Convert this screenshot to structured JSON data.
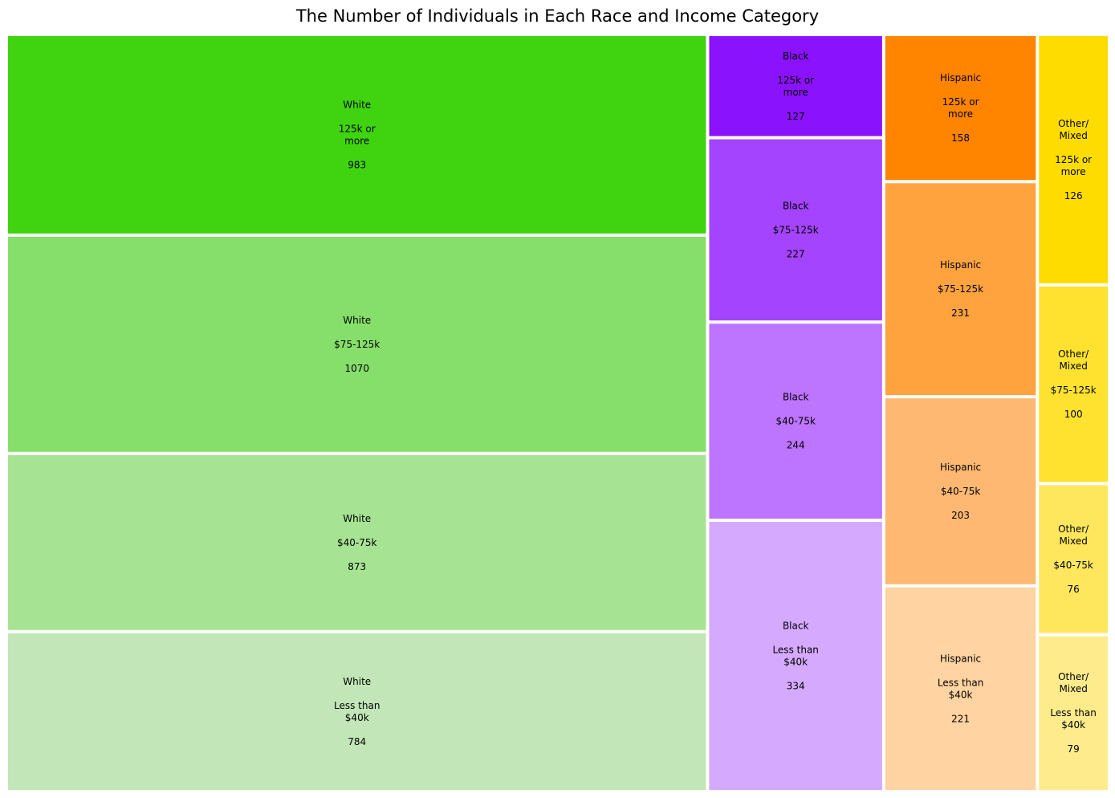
{
  "chart_data": {
    "type": "treemap",
    "title": "The Number of Individuals in Each Race and Income Category",
    "groups": [
      {
        "name": "White",
        "label": [
          "White"
        ],
        "cells": [
          {
            "category": [
              "125k or",
              "more"
            ],
            "value": 983,
            "color": "#3fd40f"
          },
          {
            "category": [
              "$75-125k"
            ],
            "value": 1070,
            "color": "#86df6a"
          },
          {
            "category": [
              "$40-75k"
            ],
            "value": 873,
            "color": "#a6e393"
          },
          {
            "category": [
              "Less than",
              "$40k"
            ],
            "value": 784,
            "color": "#c2e6b7"
          }
        ]
      },
      {
        "name": "Black",
        "label": [
          "Black"
        ],
        "cells": [
          {
            "category": [
              "125k or",
              "more"
            ],
            "value": 127,
            "color": "#8b12fd"
          },
          {
            "category": [
              "$75-125k"
            ],
            "value": 227,
            "color": "#a444fe"
          },
          {
            "category": [
              "$40-75k"
            ],
            "value": 244,
            "color": "#bd74fe"
          },
          {
            "category": [
              "Less than",
              "$40k"
            ],
            "value": 334,
            "color": "#d5a9fe"
          }
        ]
      },
      {
        "name": "Hispanic",
        "label": [
          "Hispanic"
        ],
        "cells": [
          {
            "category": [
              "125k or",
              "more"
            ],
            "value": 158,
            "color": "#ff8400"
          },
          {
            "category": [
              "$75-125k"
            ],
            "value": 231,
            "color": "#ffa33f"
          },
          {
            "category": [
              "$40-75k"
            ],
            "value": 203,
            "color": "#ffb872"
          },
          {
            "category": [
              "Less than",
              "$40k"
            ],
            "value": 221,
            "color": "#ffd3a2"
          }
        ]
      },
      {
        "name": "Other/Mixed",
        "label": [
          "Other/",
          "Mixed"
        ],
        "cells": [
          {
            "category": [
              "125k or",
              "more"
            ],
            "value": 126,
            "color": "#ffdc00"
          },
          {
            "category": [
              "$75-125k"
            ],
            "value": 100,
            "color": "#ffe22f"
          },
          {
            "category": [
              "$40-75k"
            ],
            "value": 76,
            "color": "#ffe75d"
          },
          {
            "category": [
              "Less than",
              "$40k"
            ],
            "value": 79,
            "color": "#feec8c"
          }
        ]
      }
    ]
  }
}
